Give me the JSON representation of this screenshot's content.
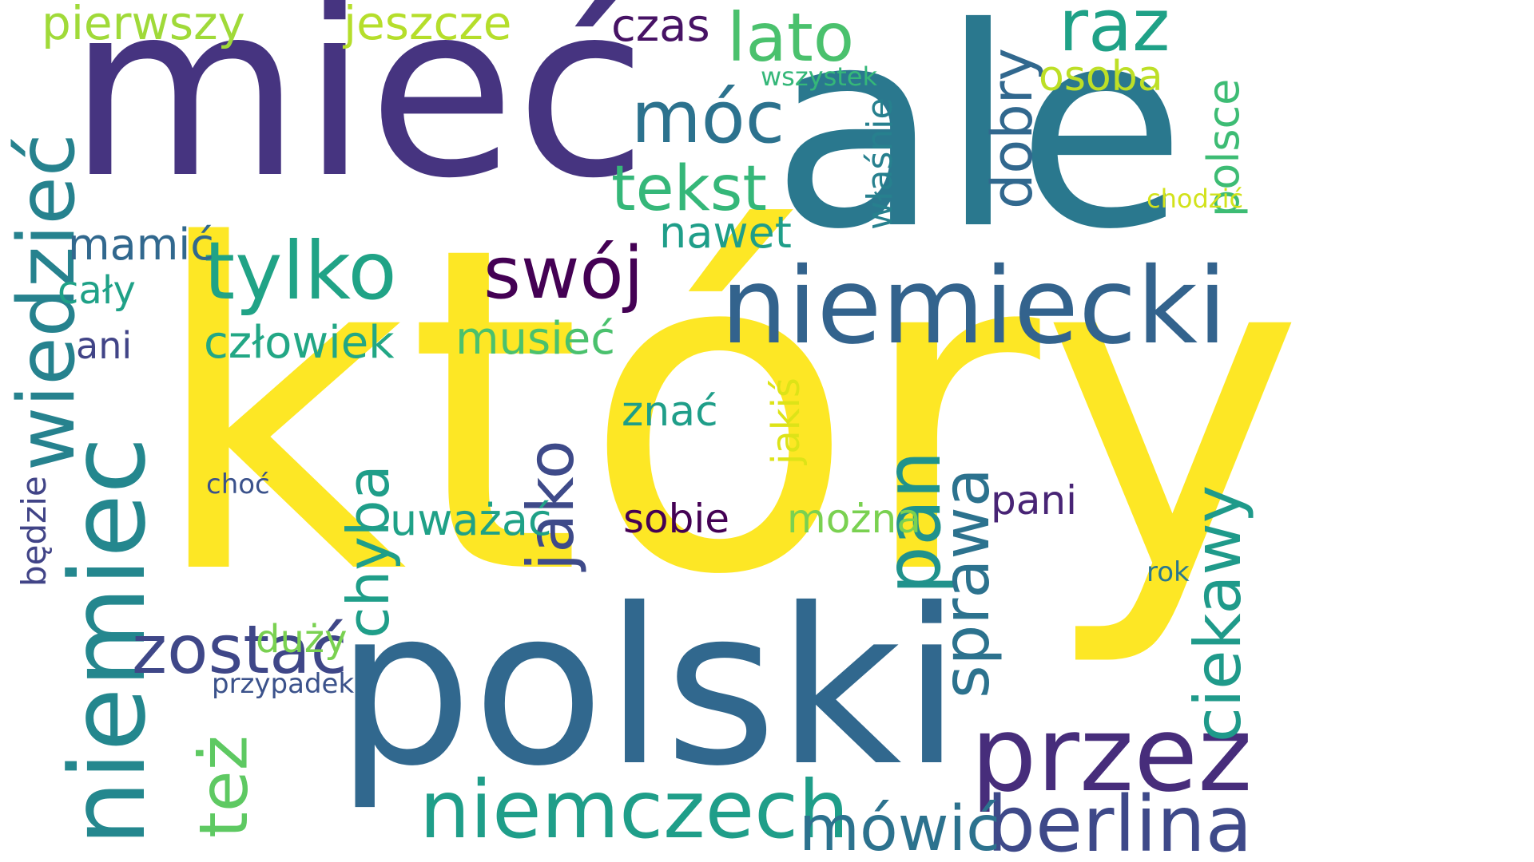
{
  "background": "#ffffff",
  "words": [
    {
      "text": "który",
      "color": "#fde725"
    },
    {
      "text": "mieć",
      "color": "#463480"
    },
    {
      "text": "ale",
      "color": "#2a788e"
    },
    {
      "text": "polski",
      "color": "#31688e"
    },
    {
      "text": "niemiecki",
      "color": "#33638d"
    },
    {
      "text": "niemiec",
      "color": "#24878e"
    },
    {
      "text": "wiedzieć",
      "color": "#26828e"
    },
    {
      "text": "tylko",
      "color": "#20a386"
    },
    {
      "text": "swój",
      "color": "#440154"
    },
    {
      "text": "przez",
      "color": "#472d7b"
    },
    {
      "text": "niemczech",
      "color": "#1f9e89"
    },
    {
      "text": "berlina",
      "color": "#3e4989"
    },
    {
      "text": "mówić",
      "color": "#2c728e"
    },
    {
      "text": "zostać",
      "color": "#3f4788"
    },
    {
      "text": "też",
      "color": "#5ec962"
    },
    {
      "text": "pan",
      "color": "#20928c"
    },
    {
      "text": "sprawa",
      "color": "#2c728e"
    },
    {
      "text": "ciekawy",
      "color": "#1f9a8a"
    },
    {
      "text": "jako",
      "color": "#3e4a89"
    },
    {
      "text": "chyba",
      "color": "#1f9e89"
    },
    {
      "text": "móc",
      "color": "#2c728e"
    },
    {
      "text": "tekst",
      "color": "#35b779"
    },
    {
      "text": "lato",
      "color": "#4ac16d"
    },
    {
      "text": "raz",
      "color": "#1fa187"
    },
    {
      "text": "dobry",
      "color": "#31688e"
    },
    {
      "text": "człowiek",
      "color": "#22a785"
    },
    {
      "text": "musieć",
      "color": "#4ac16d"
    },
    {
      "text": "mamić",
      "color": "#31688e"
    },
    {
      "text": "cały",
      "color": "#1fa187"
    },
    {
      "text": "ani",
      "color": "#414487"
    },
    {
      "text": "czas",
      "color": "#471365"
    },
    {
      "text": "pierwszy",
      "color": "#a0da39"
    },
    {
      "text": "jeszcze",
      "color": "#b5de2b"
    },
    {
      "text": "osoba",
      "color": "#bddf26"
    },
    {
      "text": "polsce",
      "color": "#3dbc74"
    },
    {
      "text": "wszystek",
      "color": "#35b779"
    },
    {
      "text": "właśnie",
      "color": "#27808e"
    },
    {
      "text": "nawet",
      "color": "#1f9e89"
    },
    {
      "text": "chodzić",
      "color": "#d2e21b"
    },
    {
      "text": "znać",
      "color": "#1f9e89"
    },
    {
      "text": "jakiś",
      "color": "#dde318"
    },
    {
      "text": "pani",
      "color": "#482475"
    },
    {
      "text": "sobie",
      "color": "#440154"
    },
    {
      "text": "można",
      "color": "#7ad151"
    },
    {
      "text": "uważać",
      "color": "#1fa187"
    },
    {
      "text": "choć",
      "color": "#3b528b"
    },
    {
      "text": "będzie",
      "color": "#414487"
    },
    {
      "text": "duży",
      "color": "#7ad151"
    },
    {
      "text": "przypadek",
      "color": "#3b528b"
    },
    {
      "text": "rok",
      "color": "#2a788e"
    }
  ]
}
